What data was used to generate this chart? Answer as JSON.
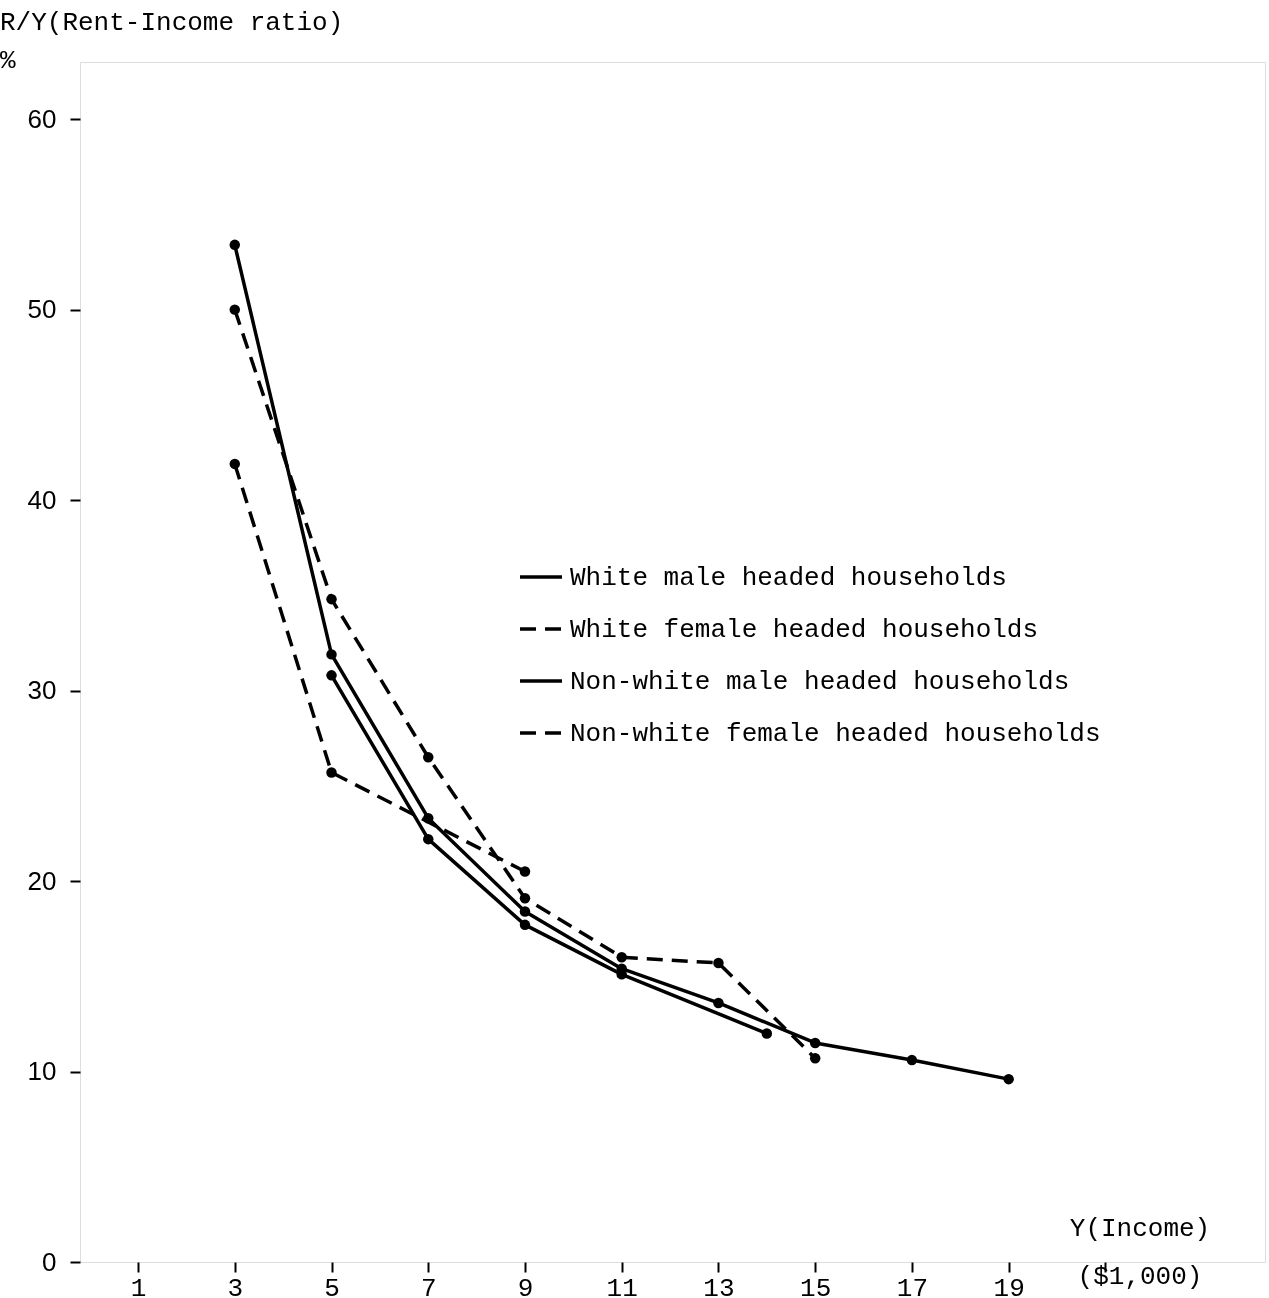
{
  "chart_data": {
    "type": "line",
    "xlabel": "Y(Income)\n($1,000)",
    "ylabel": "R/Y(Rent-Income ratio)\n%",
    "xlim": [
      -0.2,
      24.3
    ],
    "ylim": [
      0,
      63
    ],
    "xticks": [
      1,
      3,
      5,
      7,
      9,
      11,
      13,
      15,
      17,
      19,
      {
        "value": 21,
        "label": null
      }
    ],
    "yticks": [
      0,
      10,
      20,
      30,
      40,
      50,
      60
    ],
    "grid": false,
    "legend": "right",
    "marker": "circle",
    "series": [
      {
        "name": "White male headed households",
        "color": "#000000",
        "line_style": "solid",
        "x": [
          3,
          5,
          7,
          9,
          11,
          13,
          15,
          17,
          19
        ],
        "values": [
          53.4,
          31.9,
          23.3,
          18.4,
          15.4,
          13.6,
          11.5,
          10.6,
          9.6
        ]
      },
      {
        "name": "White female headed households",
        "color": "#000000",
        "line_style": "dashed",
        "x": [
          3,
          5,
          7,
          9,
          11,
          13,
          15
        ],
        "values": [
          50.0,
          34.8,
          26.5,
          19.1,
          16.0,
          15.7,
          10.7
        ]
      },
      {
        "name": "Non-white male headed households",
        "color": "#000000",
        "line_style": "solid",
        "x": [
          5,
          7,
          9,
          11,
          14
        ],
        "values": [
          30.8,
          22.2,
          17.7,
          15.1,
          12.0
        ]
      },
      {
        "name": "Non-white female headed households",
        "color": "#000000",
        "line_style": "dashed",
        "x": [
          3,
          5,
          9
        ],
        "values": [
          41.9,
          25.7,
          20.5
        ]
      }
    ]
  }
}
